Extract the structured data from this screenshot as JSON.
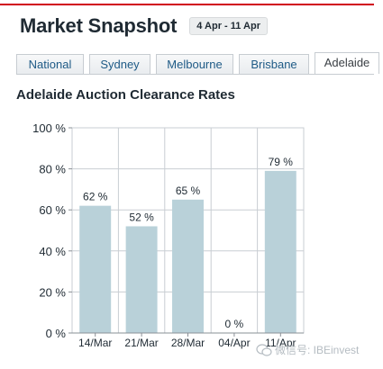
{
  "header": {
    "title": "Market Snapshot",
    "date_range": "4 Apr - 11 Apr"
  },
  "tabs": [
    {
      "label": "National",
      "active": false
    },
    {
      "label": "Sydney",
      "active": false
    },
    {
      "label": "Melbourne",
      "active": false
    },
    {
      "label": "Brisbane",
      "active": false
    },
    {
      "label": "Adelaide",
      "active": true
    }
  ],
  "chart_title": "Adelaide Auction Clearance Rates",
  "chart_data": {
    "type": "bar",
    "categories": [
      "14/Mar",
      "21/Mar",
      "28/Mar",
      "04/Apr",
      "11/Apr"
    ],
    "values": [
      62,
      52,
      65,
      0,
      79
    ],
    "data_labels": [
      "62 %",
      "52 %",
      "65 %",
      "0 %",
      "79 %"
    ],
    "y_tick_labels": [
      "0 %",
      "20 %",
      "40 %",
      "60 %",
      "80 %",
      "100 %"
    ],
    "y_ticks": [
      0,
      20,
      40,
      60,
      80,
      100
    ],
    "ylim": [
      0,
      100
    ],
    "grid": true,
    "bar_color": "#b9d1d9"
  },
  "watermark": "微信号: IBEinvest"
}
